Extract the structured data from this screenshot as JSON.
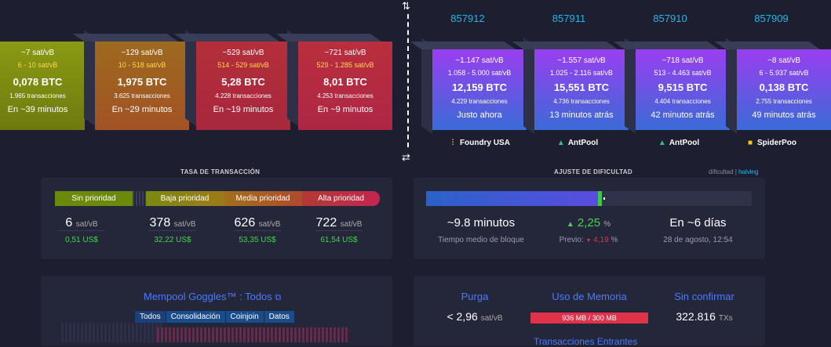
{
  "projected_blocks": [
    {
      "fee": "~7 sat/vB",
      "range": "6 - 10 sat/vB",
      "btc": "0,078 BTC",
      "tx": "1.965 transacciones",
      "time": "En ~39 minutos"
    },
    {
      "fee": "~129 sat/vB",
      "range": "10 - 518 sat/vB",
      "btc": "1,975 BTC",
      "tx": "3.625 transacciones",
      "time": "En ~29 minutos"
    },
    {
      "fee": "~529 sat/vB",
      "range": "514 - 529 sat/vB",
      "btc": "5,28 BTC",
      "tx": "4.228 transacciones",
      "time": "En ~19 minutos"
    },
    {
      "fee": "~721 sat/vB",
      "range": "529 - 1.285 sat/vB",
      "btc": "8,01 BTC",
      "tx": "4.253 transacciones",
      "time": "En ~9 minutos"
    }
  ],
  "mined_blocks": [
    {
      "height": "857912",
      "fee": "~1.147 sat/vB",
      "range": "1.058 - 5.000 sat/vB",
      "btc": "12,159 BTC",
      "tx": "4.229 transacciones",
      "time": "Justo ahora",
      "pool": "Foundry USA",
      "pool_icon": "foundry-icon"
    },
    {
      "height": "857911",
      "fee": "~1.557 sat/vB",
      "range": "1.025 - 2.116 sat/vB",
      "btc": "15,551 BTC",
      "tx": "4.736 transacciones",
      "time": "13 minutos atrás",
      "pool": "AntPool",
      "pool_icon": "antpool-icon"
    },
    {
      "height": "857910",
      "fee": "~718 sat/vB",
      "range": "513 - 4.463 sat/vB",
      "btc": "9,515 BTC",
      "tx": "4.404 transacciones",
      "time": "42 minutos atrás",
      "pool": "AntPool",
      "pool_icon": "antpool-icon"
    },
    {
      "height": "857909",
      "fee": "~8 sat/vB",
      "range": "6 - 5.937 sat/vB",
      "btc": "0,138 BTC",
      "tx": "2.755 transacciones",
      "time": "49 minutos atrás",
      "pool": "SpiderPoo",
      "pool_icon": "spiderpool-icon"
    }
  ],
  "fees": {
    "title": "TASA DE TRANSACCIÓN",
    "labels": [
      "Sin prioridad",
      "Baja prioridad",
      "Media prioridad",
      "Alta prioridad"
    ],
    "unit": "sat/vB",
    "items": [
      {
        "value": "6",
        "usd": "0,51 US$"
      },
      {
        "value": "378",
        "usd": "32,22 US$"
      },
      {
        "value": "626",
        "usd": "53,35 US$"
      },
      {
        "value": "722",
        "usd": "61,54 US$"
      }
    ]
  },
  "difficulty": {
    "title": "AJUSTE DE DIFICULTAD",
    "toggle_a": "dificultad",
    "toggle_sep": "|",
    "toggle_b": "halving",
    "progress_fraction": 0.54,
    "avg_block": "~9.8 minutos",
    "avg_block_label": "Tiempo medio de bloque",
    "change": "2,25",
    "change_unit": "%",
    "prev_label": "Previo:",
    "prev_value": "4,19",
    "prev_unit": "%",
    "eta": "En ~6 días",
    "eta_date": "28 de agosto, 12:54"
  },
  "goggles": {
    "title": "Mempool Goggles™ : Todos",
    "tabs": [
      "Todos",
      "Consolidación",
      "Coinjoin",
      "Datos"
    ]
  },
  "mempool": {
    "purge_label": "Purga",
    "purge_value": "< 2,96",
    "purge_unit": "sat/vB",
    "memory_label": "Uso de Memoria",
    "memory_value": "936 MB / 300 MB",
    "unconfirmed_label": "Sin confirmar",
    "unconfirmed_value": "322.816",
    "unconfirmed_unit": "TXs",
    "incoming_label": "Transacciones Entrantes"
  },
  "colors": {
    "accent": "#20b7e8",
    "link": "#4a7bff",
    "positive": "#4ad14f",
    "negative": "#e0334a"
  }
}
